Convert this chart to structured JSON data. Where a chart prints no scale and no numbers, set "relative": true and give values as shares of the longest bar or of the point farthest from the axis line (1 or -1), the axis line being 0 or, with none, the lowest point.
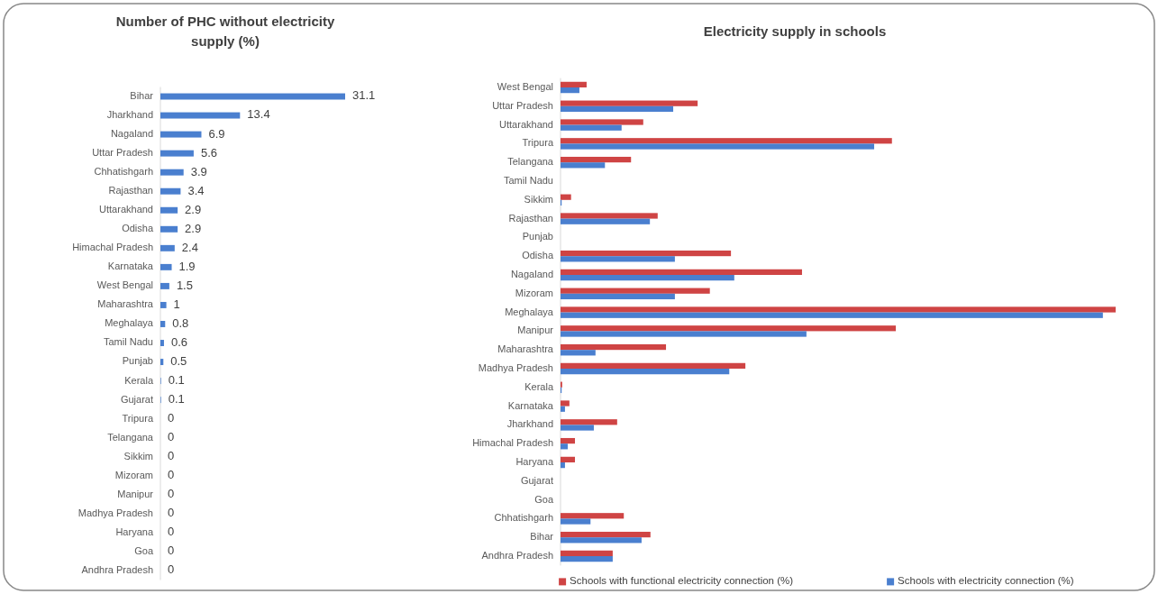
{
  "chart_data": [
    {
      "type": "bar",
      "orientation": "horizontal",
      "title": "Number of PHC without electricity supply (%)",
      "categories": [
        "Bihar",
        "Jharkhand",
        "Nagaland",
        "Uttar Pradesh",
        "Chhatishgarh",
        "Rajasthan",
        "Uttarakhand",
        "Odisha",
        "Himachal Pradesh",
        "Karnataka",
        "West Bengal",
        "Maharashtra",
        "Meghalaya",
        "Tamil Nadu",
        "Punjab",
        "Kerala",
        "Gujarat",
        "Tripura",
        "Telangana",
        "Sikkim",
        "Mizoram",
        "Manipur",
        "Madhya Pradesh",
        "Haryana",
        "Goa",
        "Andhra Pradesh"
      ],
      "values": [
        31.1,
        13.4,
        6.9,
        5.6,
        3.9,
        3.4,
        2.9,
        2.9,
        2.4,
        1.9,
        1.5,
        1,
        0.8,
        0.6,
        0.5,
        0.1,
        0.1,
        0,
        0,
        0,
        0,
        0,
        0,
        0,
        0,
        0
      ],
      "color": "#4a7fcf",
      "data_labels": true
    },
    {
      "type": "bar",
      "orientation": "horizontal",
      "relative": true,
      "title": "Electricity supply in schools",
      "legend": "bottom",
      "categories": [
        "West Bengal",
        "Uttar Pradesh",
        "Uttarakhand",
        "Tripura",
        "Telangana",
        "Tamil Nadu",
        "Sikkim",
        "Rajasthan",
        "Punjab",
        "Odisha",
        "Nagaland",
        "Mizoram",
        "Meghalaya",
        "Manipur",
        "Maharashtra",
        "Madhya Pradesh",
        "Kerala",
        "Karnataka",
        "Jharkhand",
        "Himachal Pradesh",
        "Haryana",
        "Gujarat",
        "Goa",
        "Chhatishgarh",
        "Bihar",
        "Andhra Pradesh"
      ],
      "series": [
        {
          "name": "Schools with functional electricity connection (%)",
          "color": "#cf4444",
          "values": [
            0.047,
            0.247,
            0.149,
            0.597,
            0.127,
            0,
            0.019,
            0.175,
            0,
            0.307,
            0.435,
            0.269,
            1,
            0.604,
            0.19,
            0.333,
            0.003,
            0.016,
            0.102,
            0.026,
            0.026,
            0,
            0,
            0.114,
            0.162,
            0.094
          ]
        },
        {
          "name": "Schools with electricity connection (%)",
          "color": "#4a7fcf",
          "values": [
            0.034,
            0.203,
            0.11,
            0.565,
            0.08,
            0,
            0.002,
            0.161,
            0,
            0.206,
            0.313,
            0.206,
            0.977,
            0.443,
            0.063,
            0.304,
            0.002,
            0.008,
            0.06,
            0.013,
            0.008,
            0,
            0,
            0.054,
            0.146,
            0.094
          ]
        }
      ]
    }
  ]
}
